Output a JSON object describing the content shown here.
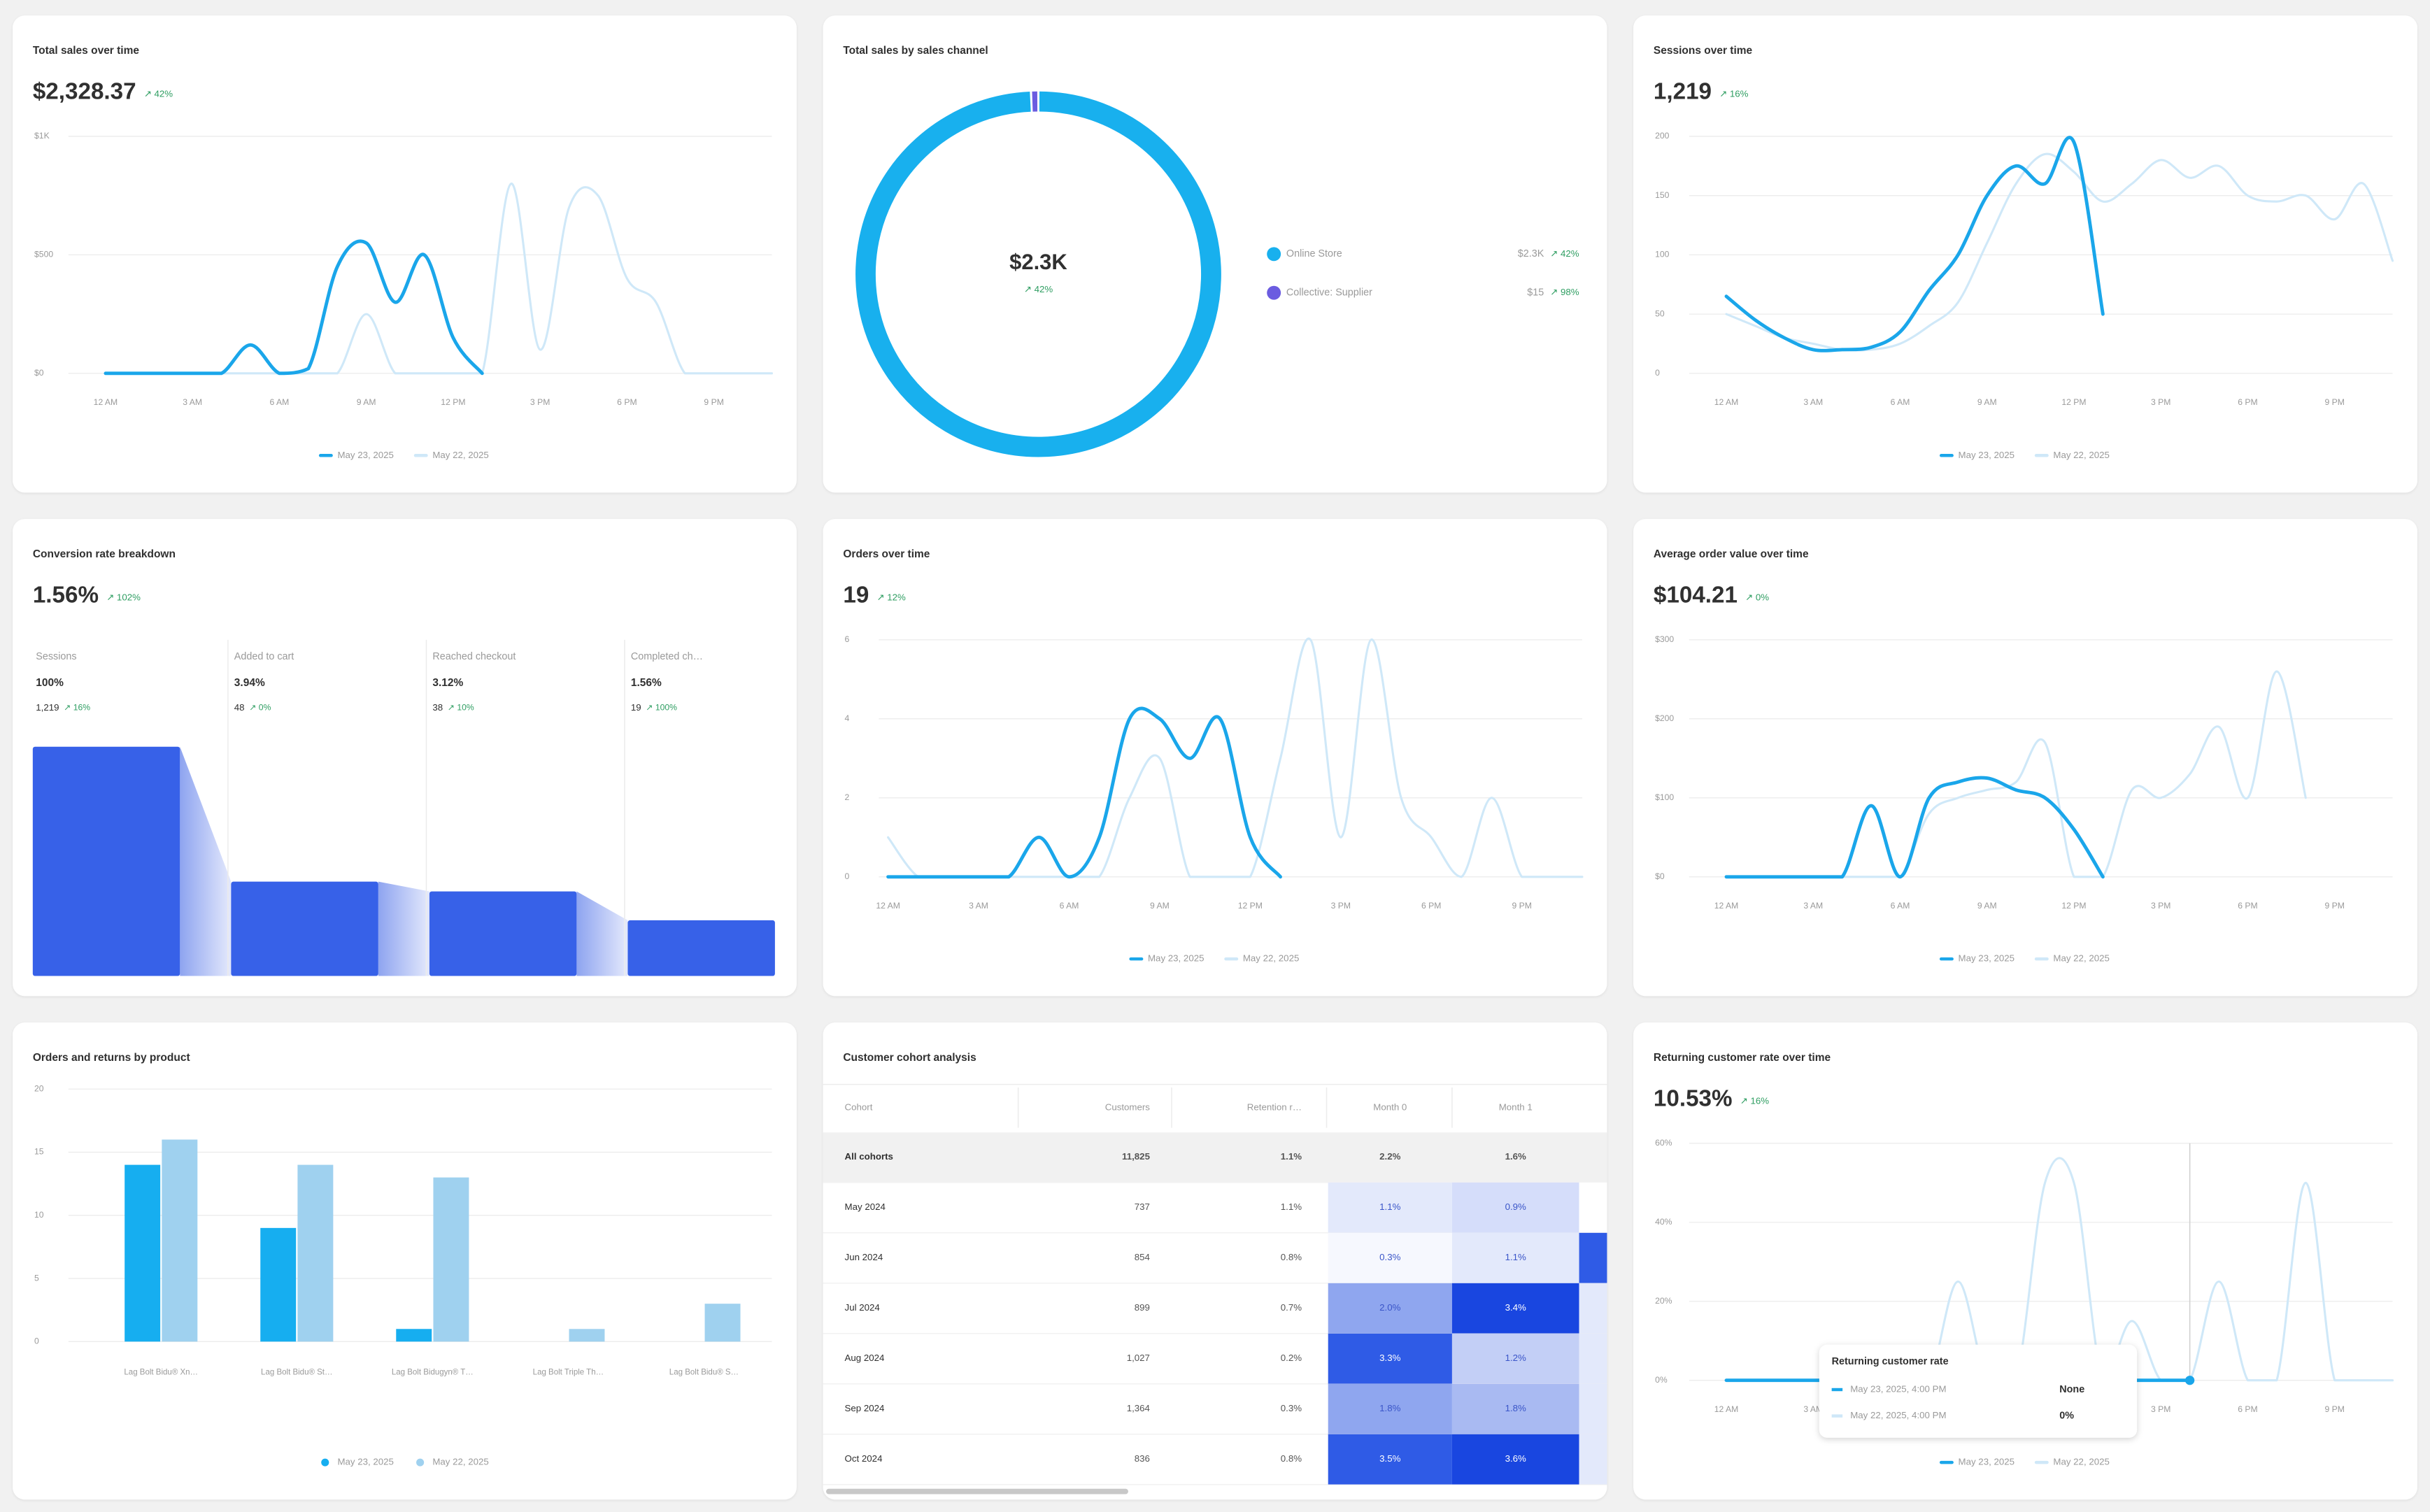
{
  "chart_data": [
    {
      "type": "line",
      "title": "Total sales over time",
      "value": "$2,328.37",
      "change": "↗ 42%",
      "categories": [
        "12 AM",
        null,
        null,
        "3 AM",
        null,
        null,
        "6 AM",
        null,
        null,
        "9 AM",
        null,
        null,
        "12 PM",
        null,
        null,
        "3 PM",
        null,
        null,
        "6 PM",
        null,
        null,
        "9 PM",
        null,
        null
      ],
      "series": [
        {
          "name": "May 23, 2025",
          "color": "#1aa6ea",
          "values": [
            0,
            0,
            0,
            0,
            0,
            120,
            0,
            20,
            450,
            550,
            300,
            500,
            150,
            0,
            null,
            null,
            null,
            null,
            null,
            null,
            null,
            null,
            null,
            null
          ]
        },
        {
          "name": "May 22, 2025",
          "color": "#cfe8f8",
          "values": [
            0,
            0,
            0,
            0,
            0,
            0,
            0,
            0,
            0,
            250,
            0,
            0,
            0,
            0,
            800,
            100,
            700,
            750,
            400,
            300,
            0,
            0,
            0,
            0
          ]
        }
      ],
      "ylim": [
        0,
        1000
      ],
      "yticks": [
        {
          "value": 0,
          "label": "$0"
        },
        {
          "value": 500,
          "label": "$500"
        },
        {
          "value": 1000,
          "label": "$1K"
        }
      ],
      "grid": true
    },
    {
      "type": "pie",
      "title": "Total sales by sales channel",
      "center_label": "$2.3K",
      "center_change": "↗ 42%",
      "categories": [
        "Online Store",
        "Collective: Supplier"
      ],
      "values": [
        2313.37,
        15
      ],
      "value_labels": [
        "$2.3K",
        "$15"
      ],
      "changes": [
        "↗ 42%",
        "↗ 98%"
      ],
      "colors": [
        "#18b0ee",
        "#6b5ce0"
      ]
    },
    {
      "type": "line",
      "title": "Sessions over time",
      "value": "1,219",
      "change": "↗ 16%",
      "categories": [
        "12 AM",
        null,
        null,
        "3 AM",
        null,
        null,
        "6 AM",
        null,
        null,
        "9 AM",
        null,
        null,
        "12 PM",
        null,
        null,
        "3 PM",
        null,
        null,
        "6 PM",
        null,
        null,
        "9 PM",
        null,
        null
      ],
      "series": [
        {
          "name": "May 23, 2025",
          "color": "#1aa6ea",
          "values": [
            65,
            45,
            30,
            20,
            20,
            22,
            35,
            70,
            100,
            150,
            175,
            160,
            195,
            50,
            null,
            null,
            null,
            null,
            null,
            null,
            null,
            null,
            null,
            null
          ]
        },
        {
          "name": "May 22, 2025",
          "color": "#cfe8f8",
          "values": [
            50,
            40,
            30,
            25,
            20,
            20,
            25,
            40,
            60,
            110,
            160,
            185,
            170,
            145,
            160,
            180,
            165,
            175,
            150,
            145,
            150,
            130,
            160,
            95
          ]
        }
      ],
      "ylim": [
        0,
        200
      ],
      "yticks": [
        0,
        50,
        100,
        150,
        200
      ],
      "grid": true
    },
    {
      "type": "funnel",
      "title": "Conversion rate breakdown",
      "value": "1.56%",
      "change": "↗ 102%",
      "categories": [
        "Sessions",
        "Added to cart",
        "Reached checkout",
        "Completed ch…"
      ],
      "rates": [
        "100%",
        "3.94%",
        "3.12%",
        "1.56%"
      ],
      "values": [
        1219,
        48,
        38,
        19
      ],
      "value_labels": [
        "1,219",
        "48",
        "38",
        "19"
      ],
      "changes": [
        "↗ 16%",
        "↗ 0%",
        "↗ 10%",
        "↗ 100%"
      ],
      "color": "#3761e8",
      "log": true,
      "ylim": [
        5,
        1219
      ]
    },
    {
      "type": "line",
      "title": "Orders over time",
      "value": "19",
      "change": "↗ 12%",
      "categories": [
        "12 AM",
        null,
        null,
        "3 AM",
        null,
        null,
        "6 AM",
        null,
        null,
        "9 AM",
        null,
        null,
        "12 PM",
        null,
        null,
        "3 PM",
        null,
        null,
        "6 PM",
        null,
        null,
        "9 PM",
        null,
        null
      ],
      "series": [
        {
          "name": "May 23, 2025",
          "color": "#1aa6ea",
          "values": [
            0,
            0,
            0,
            0,
            0,
            1,
            0,
            1,
            4,
            4,
            3,
            4,
            1,
            0,
            null,
            null,
            null,
            null,
            null,
            null,
            null,
            null,
            null,
            null
          ]
        },
        {
          "name": "May 22, 2025",
          "color": "#cfe8f8",
          "values": [
            1,
            0,
            0,
            0,
            0,
            0,
            0,
            0,
            2,
            3,
            0,
            0,
            0,
            3,
            6,
            1,
            6,
            2,
            1,
            0,
            2,
            0,
            0,
            0
          ]
        }
      ],
      "ylim": [
        0,
        6
      ],
      "yticks": [
        0,
        2,
        4,
        6
      ],
      "grid": true
    },
    {
      "type": "line",
      "title": "Average order value over time",
      "value": "$104.21",
      "change": "↗ 0%",
      "categories": [
        "12 AM",
        null,
        null,
        "3 AM",
        null,
        null,
        "6 AM",
        null,
        null,
        "9 AM",
        null,
        null,
        "12 PM",
        null,
        null,
        "3 PM",
        null,
        null,
        "6 PM",
        null,
        null,
        "9 PM",
        null,
        null
      ],
      "series": [
        {
          "name": "May 23, 2025",
          "color": "#1aa6ea",
          "values": [
            0,
            0,
            0,
            0,
            0,
            90,
            0,
            100,
            120,
            125,
            110,
            100,
            60,
            0,
            null,
            null,
            null,
            null,
            null,
            null,
            null,
            null,
            null,
            null
          ]
        },
        {
          "name": "May 22, 2025",
          "color": "#cfe8f8",
          "values": [
            0,
            0,
            0,
            0,
            0,
            0,
            0,
            80,
            100,
            110,
            120,
            170,
            0,
            0,
            110,
            100,
            130,
            190,
            100,
            260,
            100,
            null,
            null,
            null
          ]
        }
      ],
      "ylim": [
        0,
        300
      ],
      "yticks": [
        {
          "value": 0,
          "label": "$0"
        },
        {
          "value": 100,
          "label": "$100"
        },
        {
          "value": 200,
          "label": "$200"
        },
        {
          "value": 300,
          "label": "$300"
        }
      ],
      "grid": true
    },
    {
      "type": "bar",
      "title": "Orders and returns by product",
      "categories": [
        "Lag Bolt Bidu® Xn…",
        "Lag Bolt Bidu® St…",
        "Lag Bolt Bidugyn® T…",
        "Lag Bolt Triple Th…",
        "Lag Bolt Bidu® S…"
      ],
      "series": [
        {
          "name": "May 23, 2025",
          "color": "#16aef0",
          "values": [
            14,
            9,
            1,
            0,
            0
          ]
        },
        {
          "name": "May 22, 2025",
          "color": "#9fd1ef",
          "values": [
            16,
            14,
            13,
            1,
            3
          ]
        }
      ],
      "ylim": [
        0,
        20
      ],
      "yticks": [
        0,
        5,
        10,
        15,
        20
      ],
      "grid": true
    },
    {
      "type": "table",
      "title": "Customer cohort analysis",
      "columns": [
        "Cohort",
        "Customers",
        "Retention r…",
        "Month 0",
        "Month 1"
      ],
      "rows": [
        [
          "All cohorts",
          "11,825",
          "1.1%",
          "2.2%",
          "1.6%"
        ],
        [
          "May 2024",
          "737",
          "1.1%",
          "1.1%",
          "0.9%"
        ],
        [
          "Jun 2024",
          "854",
          "0.8%",
          "0.3%",
          "1.1%"
        ],
        [
          "Jul 2024",
          "899",
          "0.7%",
          "2.0%",
          "3.4%"
        ],
        [
          "Aug 2024",
          "1,027",
          "0.2%",
          "3.3%",
          "1.2%"
        ],
        [
          "Sep 2024",
          "1,364",
          "0.3%",
          "1.8%",
          "1.8%"
        ],
        [
          "Oct 2024",
          "836",
          "0.8%",
          "3.5%",
          "3.6%"
        ]
      ],
      "heat_colors": [
        [
          "#e3e9fb",
          "#d5ddfa",
          "#ffffff"
        ],
        [
          "#f6f8fe",
          "#e3e9fb",
          "#2f5be6"
        ],
        [
          "#8fa6ef",
          "#1946e0",
          "#e3e9fb"
        ],
        [
          "#2f5be6",
          "#c3cff6",
          "#e3e9fb"
        ],
        [
          "#8fa6ef",
          "#a9baf2",
          "#e3e9fb"
        ],
        [
          "#2f5be6",
          "#1946e0",
          "#e3e9fb"
        ]
      ]
    },
    {
      "type": "line",
      "title": "Returning customer rate over time",
      "value": "10.53%",
      "change": "↗ 16%",
      "categories": [
        "12 AM",
        null,
        null,
        "3 AM",
        null,
        null,
        "6 AM",
        null,
        null,
        "9 AM",
        null,
        null,
        "12 PM",
        null,
        null,
        "3 PM",
        null,
        null,
        "6 PM",
        null,
        null,
        "9 PM",
        null,
        null
      ],
      "series": [
        {
          "name": "May 23, 2025",
          "color": "#1aa6ea",
          "values": [
            0,
            0,
            0,
            0,
            0,
            0,
            0,
            0,
            0,
            0,
            0,
            0,
            0,
            0,
            0,
            0,
            0,
            null,
            null,
            null,
            null,
            null,
            null,
            null
          ]
        },
        {
          "name": "May 22, 2025",
          "color": "#cfe8f8",
          "values": [
            0,
            0,
            0,
            0,
            0,
            0,
            0,
            0,
            25,
            0,
            0,
            50,
            50,
            0,
            15,
            0,
            0,
            25,
            0,
            0,
            50,
            0,
            0,
            0
          ]
        }
      ],
      "ylim": [
        0,
        60
      ],
      "yticks": [
        {
          "value": 0,
          "label": "0%"
        },
        {
          "value": 20,
          "label": "20%"
        },
        {
          "value": 40,
          "label": "40%"
        },
        {
          "value": 60,
          "label": "60%"
        }
      ],
      "grid": true,
      "tooltip": {
        "title": "Returning customer rate",
        "rows": [
          {
            "label": "May 23, 2025, 4:00 PM",
            "value": "None"
          },
          {
            "label": "May 22, 2025, 4:00 PM",
            "value": "0%"
          }
        ]
      }
    }
  ]
}
